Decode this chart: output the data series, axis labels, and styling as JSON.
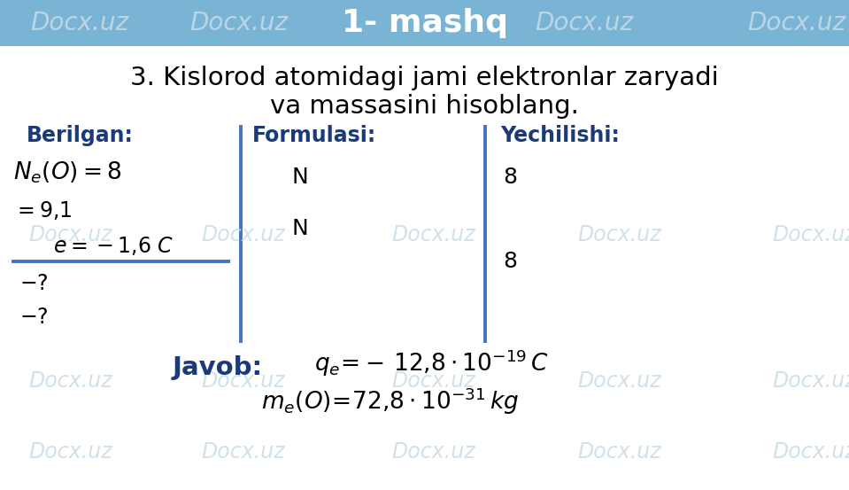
{
  "title": "1- mashq",
  "title_bg": "#7ab4d4",
  "title_color": "white",
  "title_fontsize": 26,
  "bg_color": "white",
  "watermark_color": "#c8dce8",
  "watermark_text": "Docx.uz",
  "problem_text_line1": "3. Kislorod atomidagi jami elektronlar zaryadi",
  "problem_text_line2": "va massasini hisoblang.",
  "berilgan_label": "Berilgan:",
  "formulasi_label": "Formulasi:",
  "yechilishi_label": "Yechilishi:",
  "javob_label": "Javob:",
  "divider_color": "#4472c4",
  "text_color": "black",
  "dark_blue": "#1a3a7a",
  "fig_width": 9.59,
  "fig_height": 5.53,
  "dpi": 100
}
